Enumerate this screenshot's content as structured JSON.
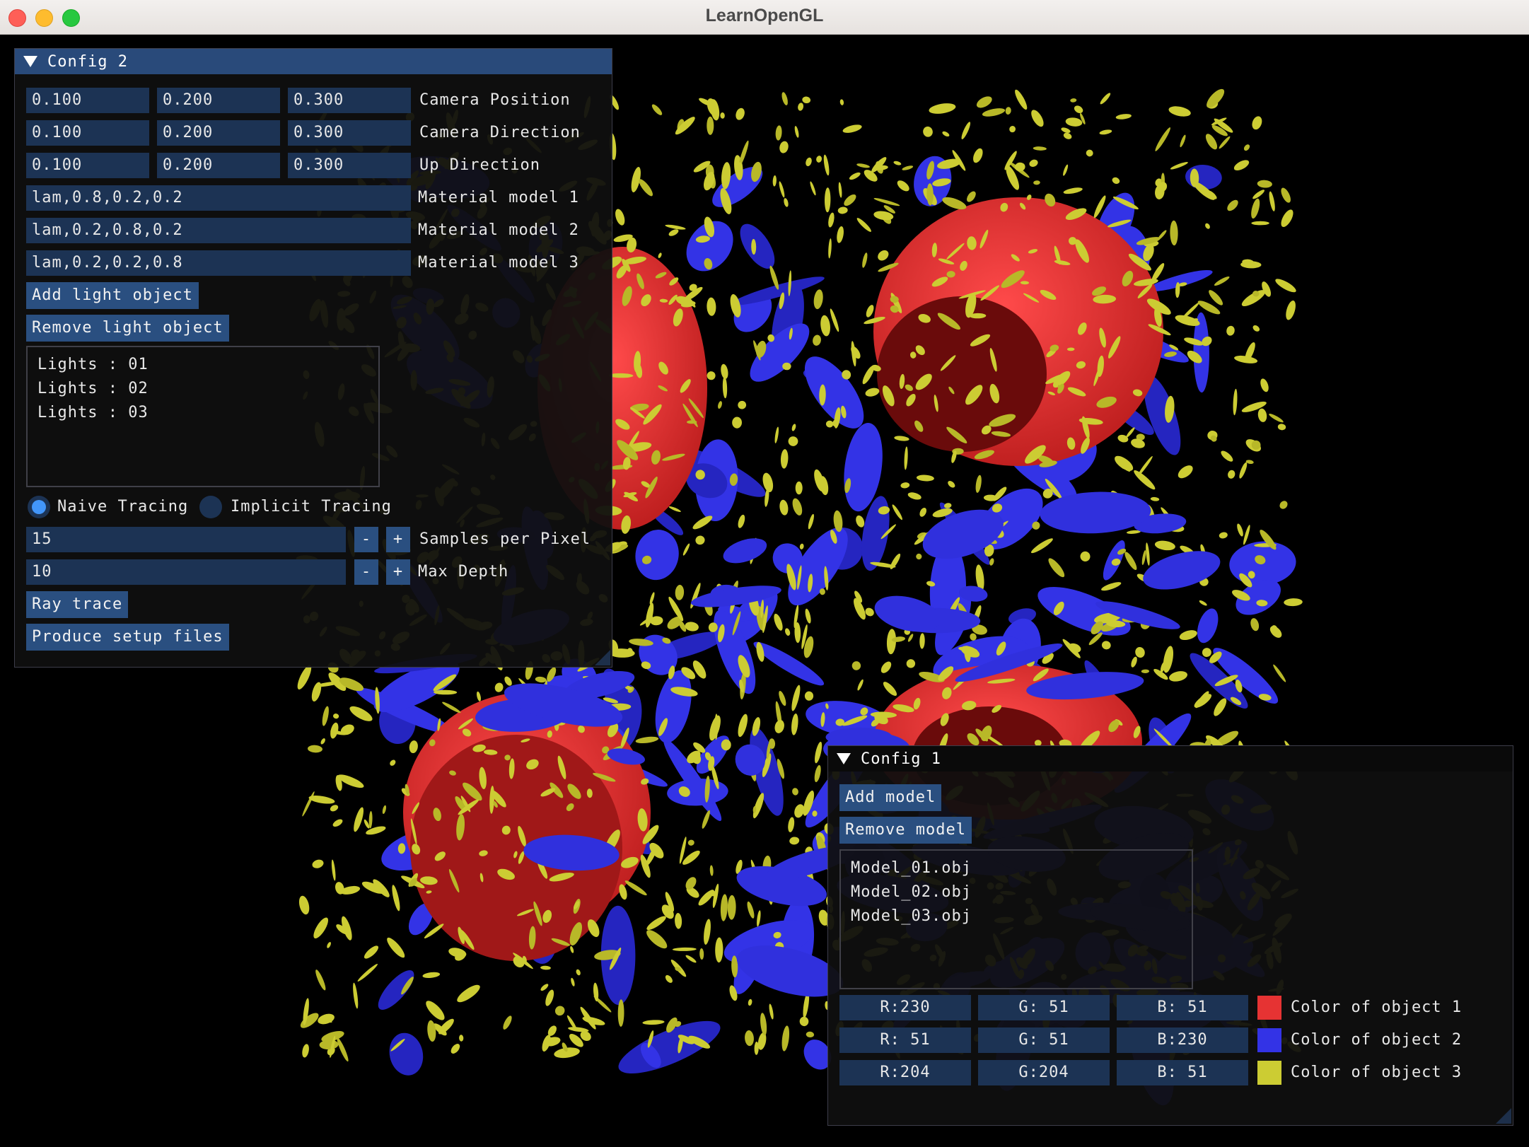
{
  "window": {
    "title": "LearnOpenGL"
  },
  "colors": {
    "object1": "#e63333",
    "object2": "#3333e6",
    "object3": "#cccc33",
    "accent": "#4296fa"
  },
  "config2": {
    "title": "Config 2",
    "camera_position": {
      "x": "0.100",
      "y": "0.200",
      "z": "0.300",
      "label": "Camera Position"
    },
    "camera_direction": {
      "x": "0.100",
      "y": "0.200",
      "z": "0.300",
      "label": "Camera Direction"
    },
    "up_direction": {
      "x": "0.100",
      "y": "0.200",
      "z": "0.300",
      "label": "Up Direction"
    },
    "materials": [
      {
        "value": "lam,0.8,0.2,0.2",
        "label": "Material model 1"
      },
      {
        "value": "lam,0.2,0.8,0.2",
        "label": "Material model 2"
      },
      {
        "value": "lam,0.2,0.2,0.8",
        "label": "Material model 3"
      }
    ],
    "add_light_label": "Add light object",
    "remove_light_label": "Remove light object",
    "lights": [
      "Lights : 01",
      "Lights : 02",
      "Lights : 03"
    ],
    "tracing": {
      "naive_label": "Naive Tracing",
      "implicit_label": "Implicit Tracing",
      "selected": "naive"
    },
    "samples": {
      "value": "15",
      "minus": "-",
      "plus": "+",
      "label": "Samples per Pixel"
    },
    "max_depth": {
      "value": "10",
      "minus": "-",
      "plus": "+",
      "label": "Max Depth"
    },
    "ray_trace_label": "Ray trace",
    "produce_label": "Produce setup files"
  },
  "config1": {
    "title": "Config 1",
    "add_model_label": "Add model",
    "remove_model_label": "Remove model",
    "models": [
      "Model_01.obj",
      "Model_02.obj",
      "Model_03.obj"
    ],
    "object_colors": [
      {
        "r": "R:230",
        "g": "G: 51",
        "b": "B: 51",
        "label": "Color of object 1",
        "swatch": "#e63333"
      },
      {
        "r": "R: 51",
        "g": "G: 51",
        "b": "B:230",
        "label": "Color of object 2",
        "swatch": "#3333e6"
      },
      {
        "r": "R:204",
        "g": "G:204",
        "b": "B: 51",
        "label": "Color of object 3",
        "swatch": "#cccc33"
      }
    ]
  }
}
